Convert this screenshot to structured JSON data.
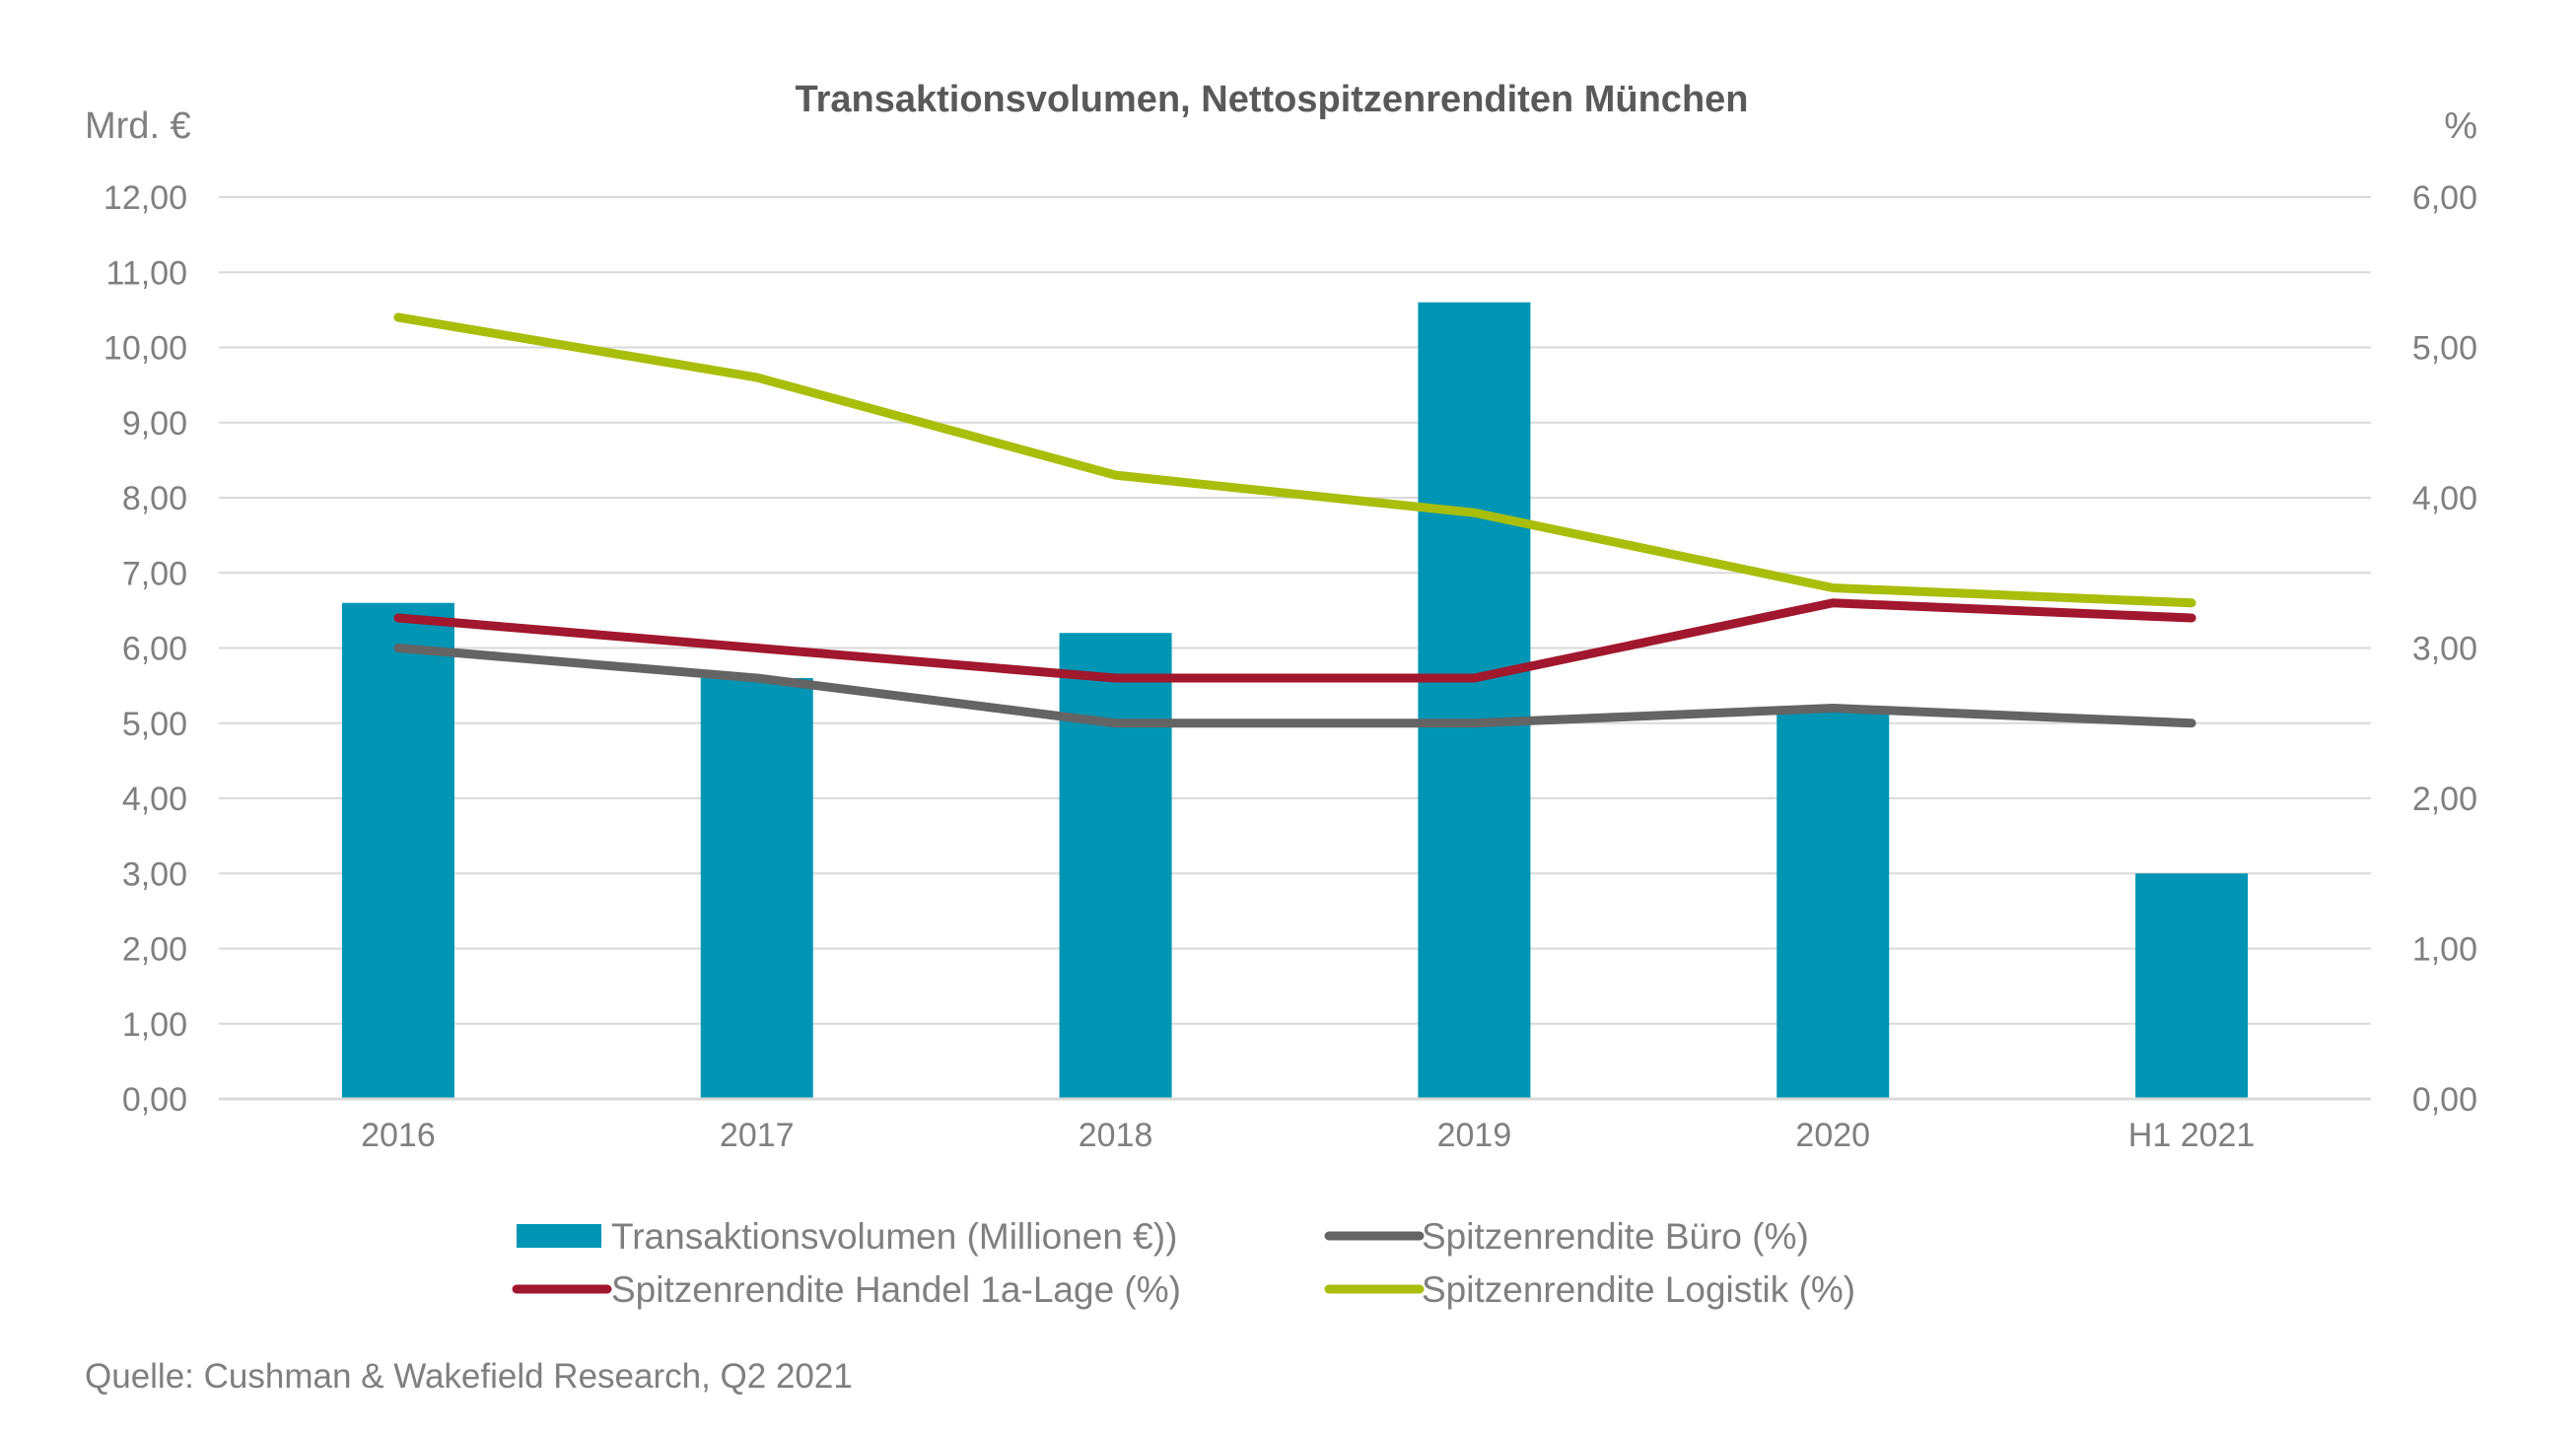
{
  "chart_data": {
    "type": "bar",
    "title": "Transaktionsvolumen, Nettospitzenrenditen München",
    "left_axis_unit": "Mrd. €",
    "right_axis_unit": "%",
    "categories": [
      "2016",
      "2017",
      "2018",
      "2019",
      "2020",
      "H1 2021"
    ],
    "ylim_left": [
      0,
      12
    ],
    "ylim_right": [
      0,
      6
    ],
    "yticks_left": [
      "0,00",
      "1,00",
      "2,00",
      "3,00",
      "4,00",
      "5,00",
      "6,00",
      "7,00",
      "8,00",
      "9,00",
      "10,00",
      "11,00",
      "12,00"
    ],
    "yticks_right": [
      "0,00",
      "1,00",
      "2,00",
      "3,00",
      "4,00",
      "5,00",
      "6,00"
    ],
    "grid": true,
    "bars": {
      "name": "Transaktionsvolumen (Millionen €))",
      "color": "#0095b4",
      "axis": "left",
      "values": [
        6.6,
        5.6,
        6.2,
        10.6,
        5.2,
        3.0
      ]
    },
    "series": [
      {
        "name": "Spitzenrendite Büro (%)",
        "color": "#646464",
        "axis": "right",
        "values": [
          3.0,
          2.8,
          2.5,
          2.5,
          2.6,
          2.5
        ]
      },
      {
        "name": "Spitzenrendite Handel 1a-Lage (%)",
        "color": "#a1172d",
        "axis": "right",
        "values": [
          3.2,
          3.0,
          2.8,
          2.8,
          3.3,
          3.2
        ]
      },
      {
        "name": "Spitzenrendite Logistik  (%)",
        "color": "#a8be0a",
        "axis": "right",
        "values": [
          5.2,
          4.8,
          4.15,
          3.9,
          3.4,
          3.3
        ]
      }
    ],
    "legend_position": "bottom"
  },
  "source": "Quelle: Cushman & Wakefield Research, Q2 2021"
}
